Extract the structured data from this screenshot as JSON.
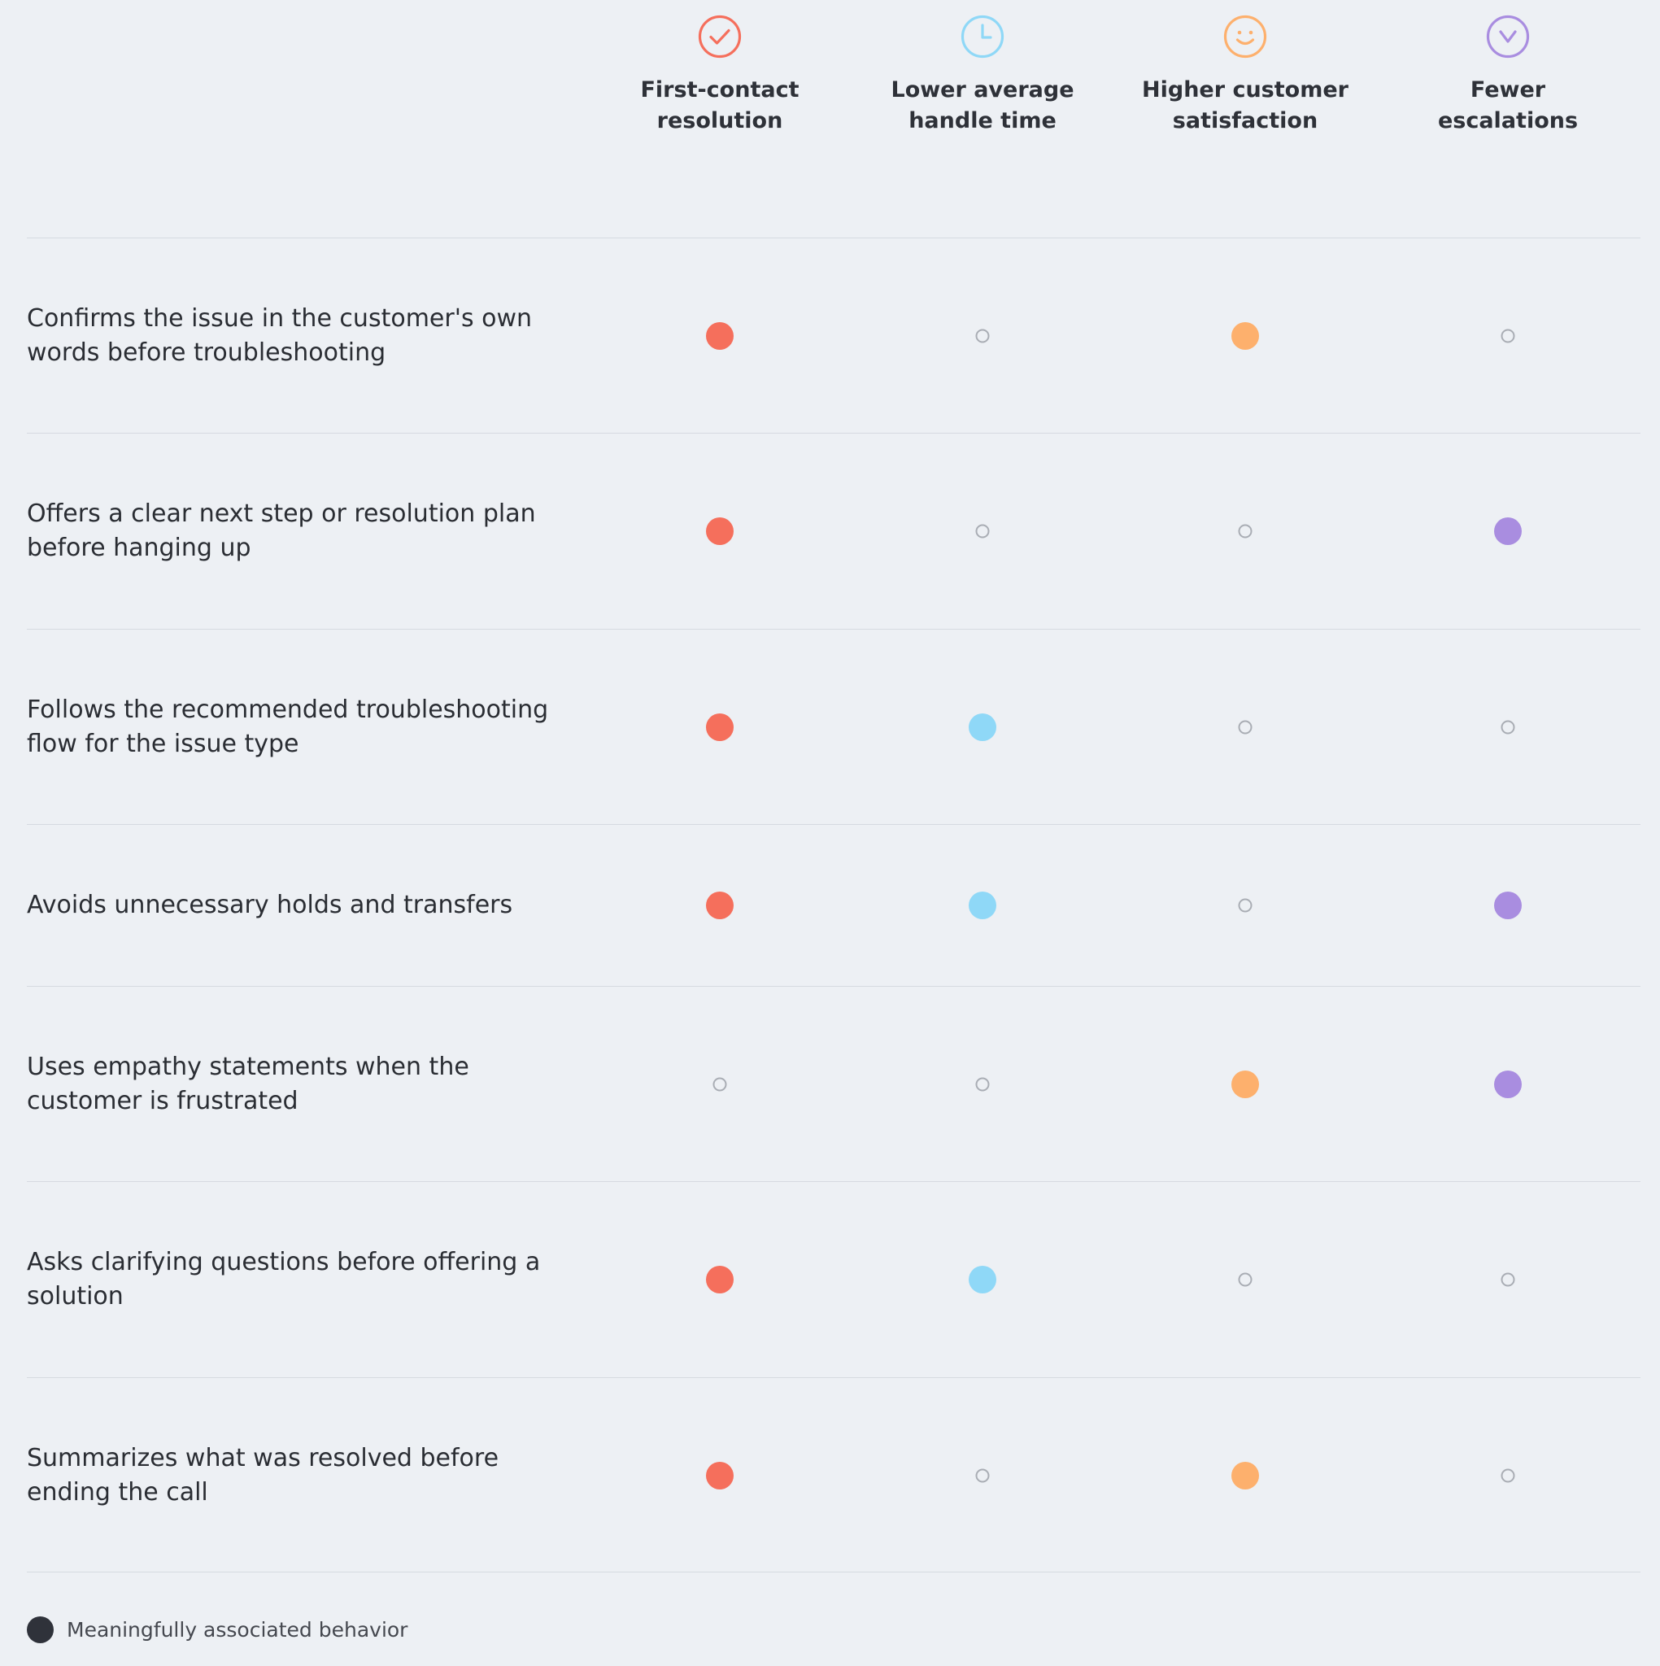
{
  "chart_data": {
    "type": "table",
    "columns": [
      {
        "label": "First-contact\nresolution",
        "icon": "check-circle-icon",
        "color": "#f56f5c"
      },
      {
        "label": "Lower average\nhandle time",
        "icon": "clock-icon",
        "color": "#8fd8f7"
      },
      {
        "label": "Higher customer\nsatisfaction",
        "icon": "smiley-face-icon",
        "color": "#fdb06d"
      },
      {
        "label": "Fewer\nescalations",
        "icon": "chevron-down-circle-icon",
        "color": "#a98de0"
      }
    ],
    "rows": [
      {
        "label": "Confirms the issue in the customer's own words before troubleshooting",
        "values": [
          1,
          0,
          1,
          0
        ]
      },
      {
        "label": "Offers a clear next step or resolution plan before hanging up",
        "values": [
          1,
          0,
          0,
          1
        ]
      },
      {
        "label": "Follows the recommended troubleshooting flow for the issue type",
        "values": [
          1,
          1,
          0,
          0
        ]
      },
      {
        "label": "Avoids unnecessary holds and transfers",
        "values": [
          1,
          1,
          0,
          1
        ]
      },
      {
        "label": "Uses empathy statements when the customer is frustrated",
        "values": [
          0,
          0,
          1,
          1
        ]
      },
      {
        "label": "Asks clarifying questions before offering a solution",
        "values": [
          1,
          1,
          0,
          0
        ]
      },
      {
        "label": "Summarizes what was resolved before ending the call",
        "values": [
          1,
          0,
          1,
          0
        ]
      }
    ],
    "legend": {
      "label": "Meaningfully associated behavior",
      "color": "#2f323a"
    }
  }
}
